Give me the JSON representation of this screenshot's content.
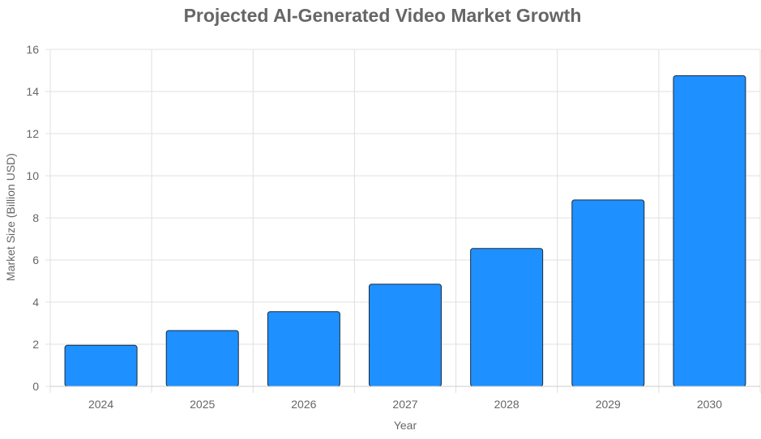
{
  "chart_data": {
    "type": "bar",
    "title": "Projected AI-Generated Video Market Growth",
    "xlabel": "Year",
    "ylabel": "Market Size (Billion USD)",
    "categories": [
      "2024",
      "2025",
      "2026",
      "2027",
      "2028",
      "2029",
      "2030"
    ],
    "values": [
      1.95,
      2.65,
      3.55,
      4.85,
      6.55,
      8.85,
      14.75
    ],
    "ylim": [
      0,
      16
    ],
    "yticks": [
      0,
      2,
      4,
      6,
      8,
      10,
      12,
      14,
      16
    ],
    "grid": true,
    "legend": "none",
    "colors": {
      "bar_fill": "#1E90FF",
      "bar_stroke": "#1a2b3c",
      "grid": "#e0e0e0",
      "axis": "#cccccc",
      "title": "#666666",
      "tick_text": "#666666",
      "label_text": "#666666"
    }
  }
}
